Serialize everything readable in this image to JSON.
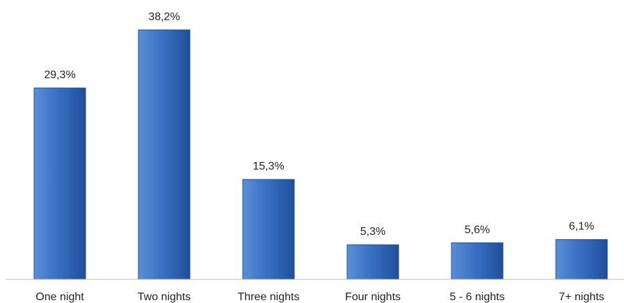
{
  "chart_data": {
    "type": "bar",
    "categories": [
      "One night",
      "Two nights",
      "Three nights",
      "Four nights",
      "5 - 6 nights",
      "7+ nights"
    ],
    "values": [
      29.3,
      38.2,
      15.3,
      5.3,
      5.6,
      6.1
    ],
    "data_labels": [
      "29,3%",
      "38,2%",
      "15,3%",
      "5,3%",
      "5,6%",
      "6,1%"
    ],
    "title": "",
    "xlabel": "",
    "ylabel": "",
    "ylim": [
      0,
      38.2
    ],
    "grid": false,
    "legend": "none",
    "colors": {
      "bar_light": "#5b8fd6",
      "bar_mid": "#3a70c4",
      "bar_dark": "#1f4f9a",
      "axis": "#bfbfbf"
    }
  }
}
